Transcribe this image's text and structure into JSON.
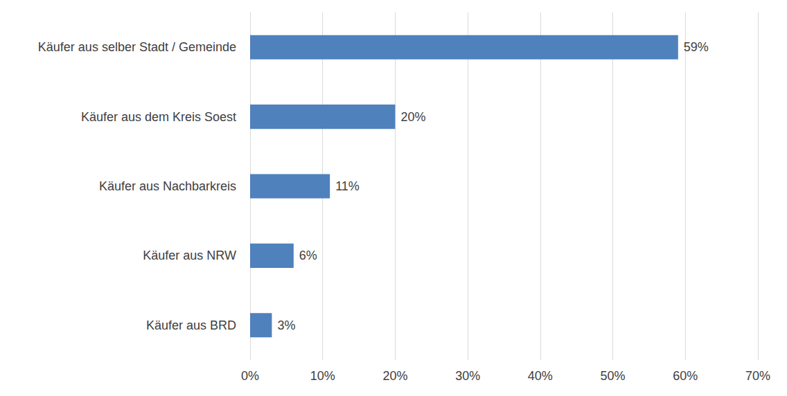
{
  "chart_data": {
    "type": "bar",
    "orientation": "horizontal",
    "categories": [
      "Käufer aus selber Stadt / Gemeinde",
      "Käufer aus dem Kreis Soest",
      "Käufer aus Nachbarkreis",
      "Käufer aus NRW",
      "Käufer aus BRD"
    ],
    "values": [
      59,
      20,
      11,
      6,
      3
    ],
    "value_labels": [
      "59%",
      "20%",
      "11%",
      "6%",
      "3%"
    ],
    "data_labels": true,
    "color": "#4f81bd",
    "xlim": [
      0,
      70
    ],
    "xticks": [
      {
        "value": 0,
        "label": "0%"
      },
      {
        "value": 10,
        "label": "10%"
      },
      {
        "value": 20,
        "label": "20%"
      },
      {
        "value": 30,
        "label": "30%"
      },
      {
        "value": 40,
        "label": "40%"
      },
      {
        "value": 50,
        "label": "50%"
      },
      {
        "value": 60,
        "label": "60%"
      },
      {
        "value": 70,
        "label": "70%"
      }
    ],
    "grid": true
  }
}
